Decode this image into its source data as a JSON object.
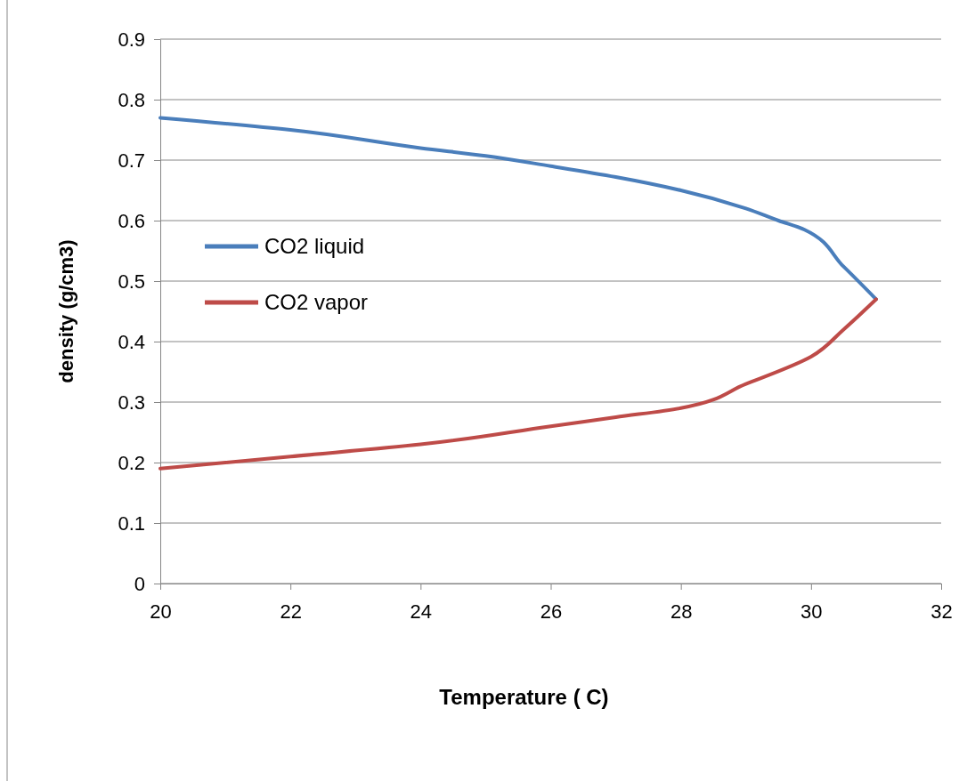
{
  "chart_data": {
    "type": "line",
    "xlabel": "Temperature ( C)",
    "ylabel": "density (g/cm3)",
    "xlim": [
      20,
      32
    ],
    "xticks": [
      20,
      22,
      24,
      26,
      28,
      30,
      32
    ],
    "ylim": [
      0,
      0.9
    ],
    "yticks": [
      0,
      0.1,
      0.2,
      0.3,
      0.4,
      0.5,
      0.6,
      0.7,
      0.8,
      0.9
    ],
    "grid": "y",
    "legend": "left",
    "marker": "none",
    "line_style": "solid",
    "series": [
      {
        "name": "CO2 liquid",
        "color": "#4a7ebb",
        "x": [
          20,
          22,
          24,
          25,
          26,
          27,
          28,
          29,
          29.5,
          29.9,
          30.5,
          31
        ],
        "values": [
          0.77,
          0.75,
          0.72,
          0.707,
          0.69,
          0.672,
          0.65,
          0.62,
          0.6,
          0.585,
          0.524,
          0.47
        ]
      },
      {
        "name": "CO2 vapor",
        "color": "#be4b48",
        "x": [
          20,
          22,
          24,
          26,
          27,
          28,
          29,
          30,
          30.5,
          31
        ],
        "values": [
          0.19,
          0.21,
          0.23,
          0.26,
          0.275,
          0.29,
          0.33,
          0.375,
          0.42,
          0.47
        ]
      }
    ]
  }
}
